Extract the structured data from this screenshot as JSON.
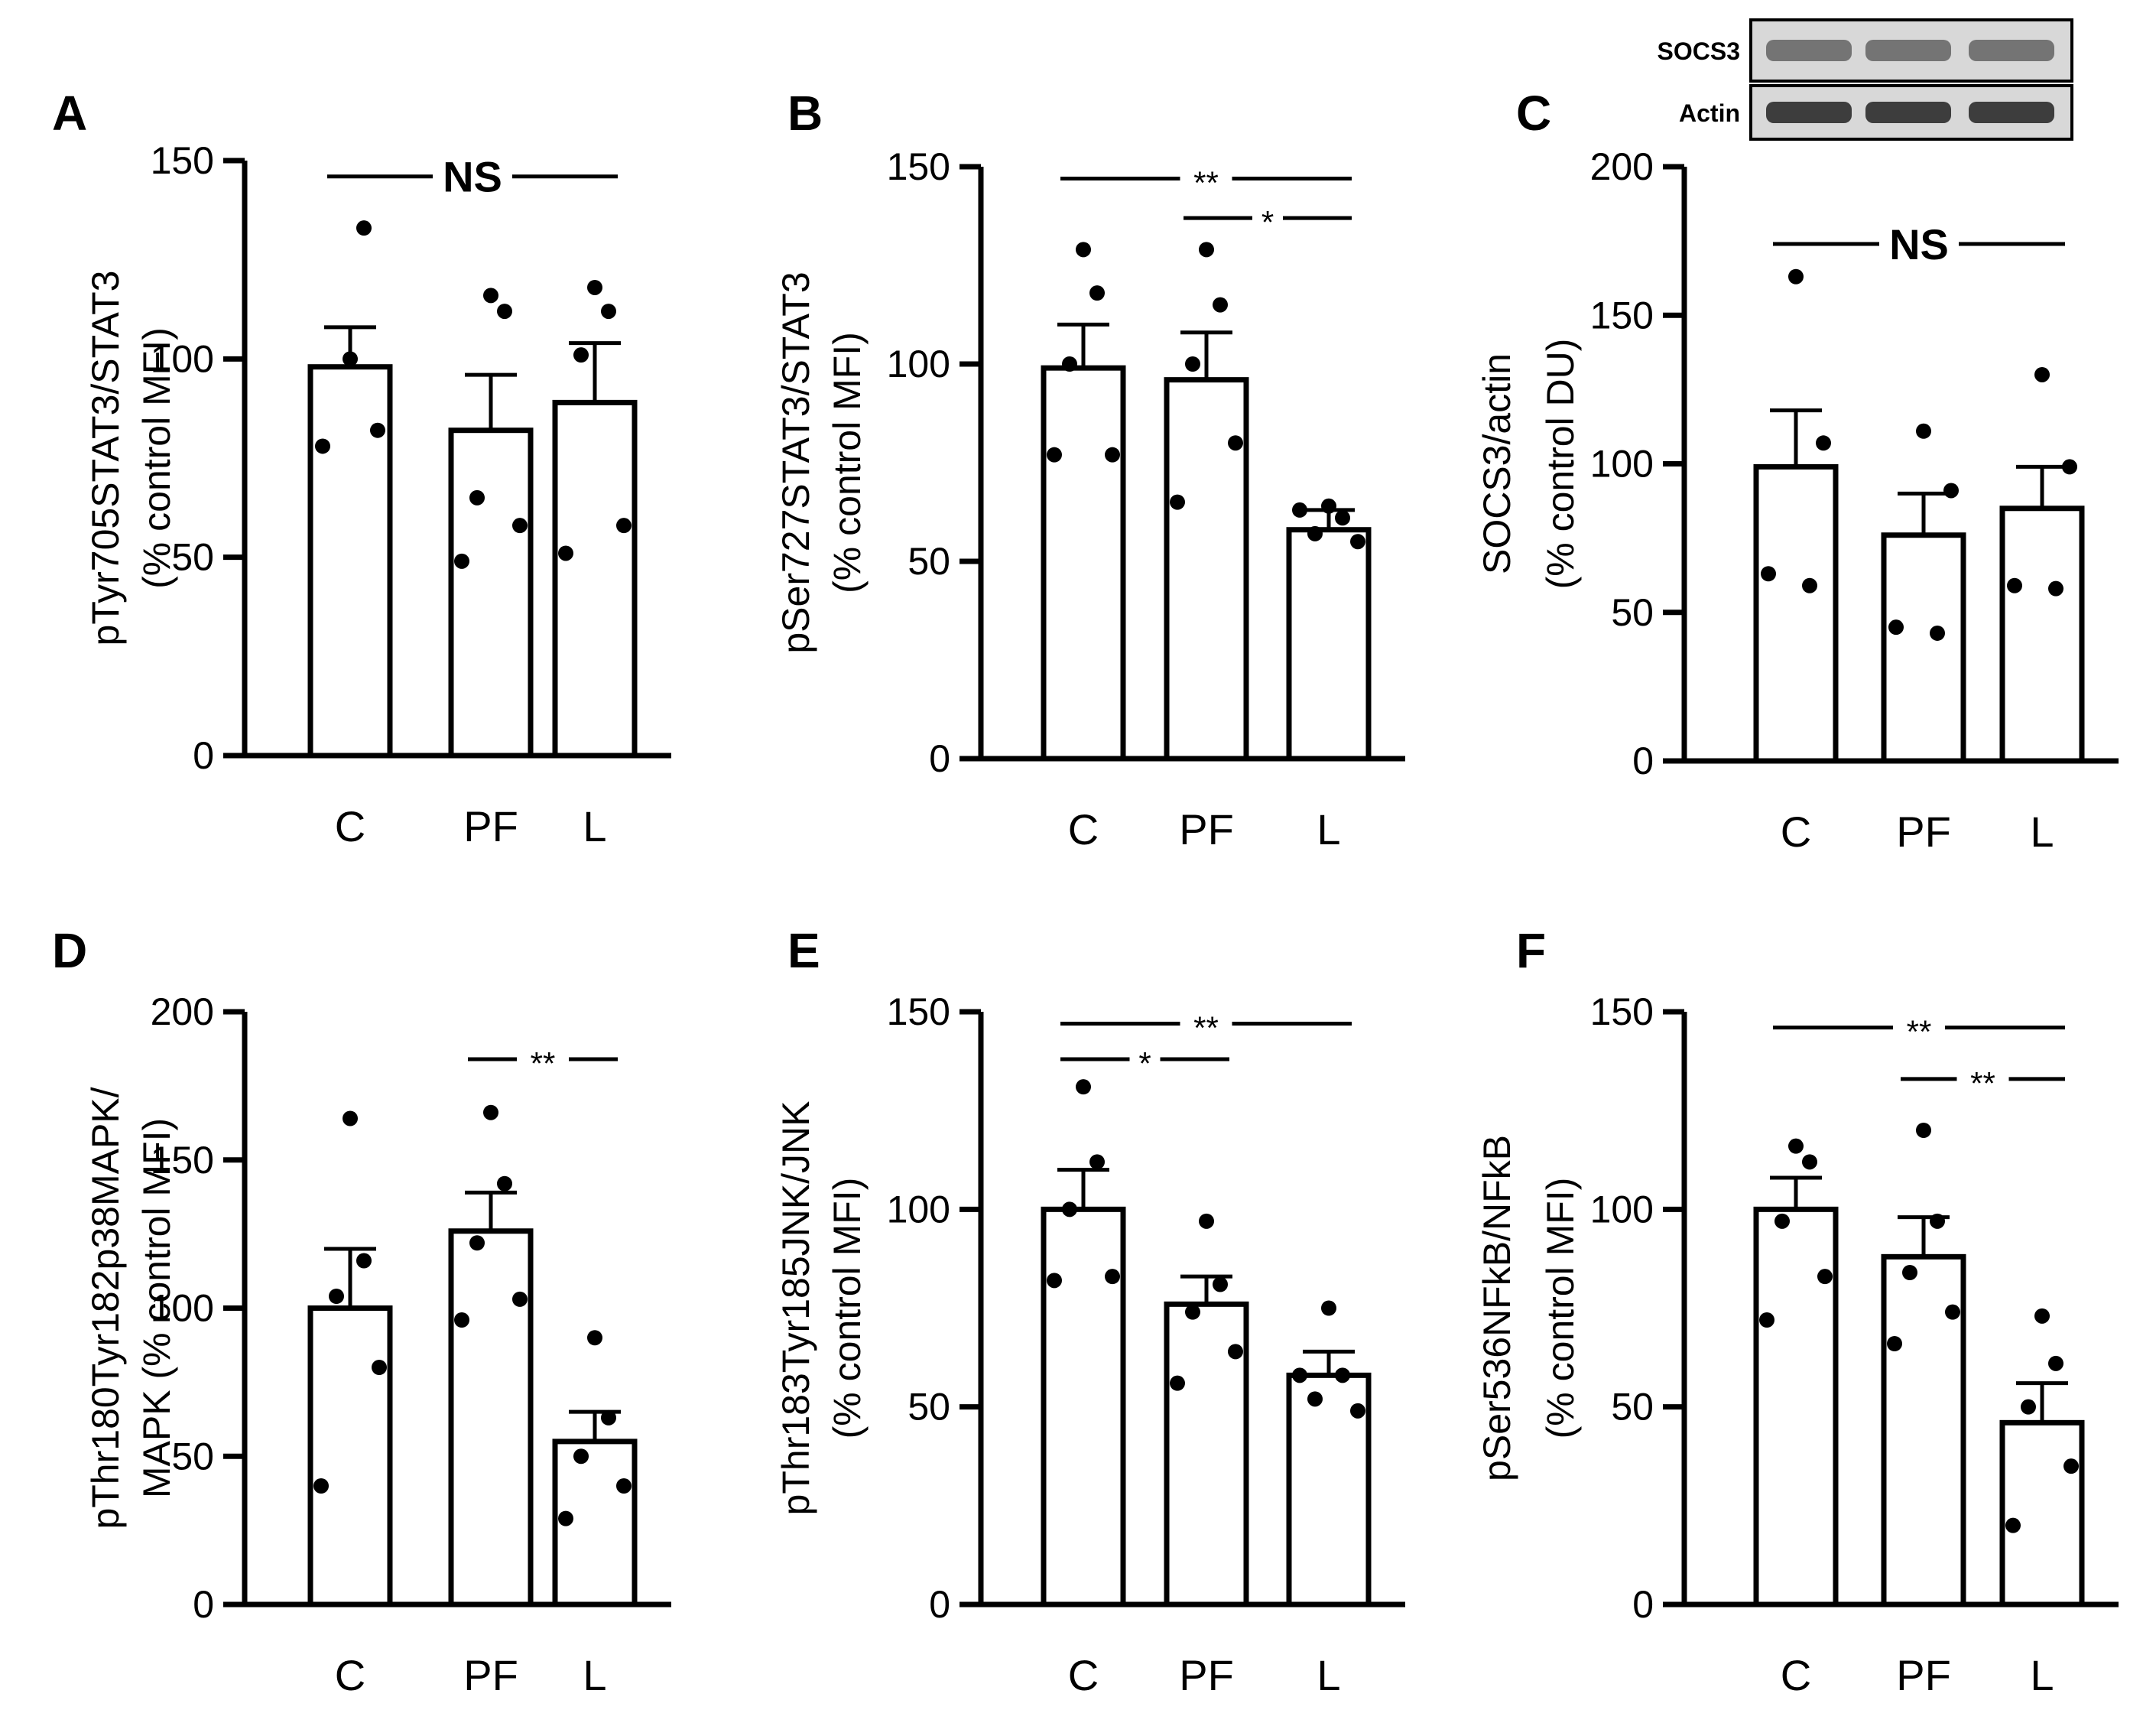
{
  "chart_data": [
    {
      "type": "bar",
      "panel_label": "A",
      "categories": [
        "C",
        "PF",
        "L"
      ],
      "values": [
        98,
        82,
        89
      ],
      "errors": [
        10,
        14,
        15
      ],
      "points": [
        [
          100,
          82,
          78,
          133
        ],
        [
          116,
          112,
          65,
          58,
          49
        ],
        [
          118,
          112,
          101,
          58,
          51
        ]
      ],
      "ylabel": [
        "pTyr705STAT3/STAT3",
        "(% control MFI)"
      ],
      "ylim": [
        0,
        150
      ],
      "yticks": [
        0,
        50,
        100,
        150
      ],
      "sig": [
        {
          "from": 0,
          "to": 2,
          "label": "NS",
          "y": 146
        }
      ]
    },
    {
      "type": "bar",
      "panel_label": "B",
      "categories": [
        "C",
        "PF",
        "L"
      ],
      "values": [
        99,
        96,
        58
      ],
      "errors": [
        11,
        12,
        5
      ],
      "points": [
        [
          129,
          118,
          100,
          77,
          77
        ],
        [
          129,
          115,
          100,
          80,
          65
        ],
        [
          64,
          61,
          57,
          55,
          63
        ]
      ],
      "ylabel": [
        "pSer727STAT3/STAT3",
        "(% control MFI)"
      ],
      "ylim": [
        0,
        150
      ],
      "yticks": [
        0,
        50,
        100,
        150
      ],
      "sig": [
        {
          "from": 0,
          "to": 2,
          "label": "**",
          "y": 147
        },
        {
          "from": 1,
          "to": 2,
          "label": "*",
          "y": 137
        }
      ]
    },
    {
      "type": "bar",
      "panel_label": "C",
      "categories": [
        "C",
        "PF",
        "L"
      ],
      "values": [
        99,
        76,
        85
      ],
      "errors": [
        19,
        14,
        14
      ],
      "points": [
        [
          163,
          107,
          63,
          59
        ],
        [
          111,
          91,
          45,
          43
        ],
        [
          130,
          99,
          59,
          58
        ]
      ],
      "ylabel": [
        "SOCS3/actin",
        "(% control DU)"
      ],
      "ylim": [
        0,
        200
      ],
      "yticks": [
        0,
        50,
        100,
        150,
        200
      ],
      "sig": [
        {
          "from": 0,
          "to": 2,
          "label": "NS",
          "y": 174
        }
      ],
      "blot": {
        "rows": [
          "SOCS3",
          "Actin"
        ]
      }
    },
    {
      "type": "bar",
      "panel_label": "D",
      "categories": [
        "C",
        "PF",
        "L"
      ],
      "values": [
        100,
        126,
        55
      ],
      "errors": [
        20,
        13,
        10
      ],
      "points": [
        [
          164,
          116,
          104,
          80,
          40
        ],
        [
          166,
          142,
          122,
          103,
          96
        ],
        [
          90,
          63,
          50,
          40,
          29
        ]
      ],
      "ylabel": [
        "pThr180Tyr182p38MAPK/",
        "MAPK (% control MFI)"
      ],
      "ylim": [
        0,
        200
      ],
      "yticks": [
        0,
        50,
        100,
        150,
        200
      ],
      "sig": [
        {
          "from": 1,
          "to": 2,
          "label": "**",
          "y": 184
        }
      ]
    },
    {
      "type": "bar",
      "panel_label": "E",
      "categories": [
        "C",
        "PF",
        "L"
      ],
      "values": [
        100,
        76,
        58
      ],
      "errors": [
        10,
        7,
        6
      ],
      "points": [
        [
          131,
          112,
          100,
          83,
          82
        ],
        [
          97,
          81,
          74,
          64,
          56
        ],
        [
          75,
          58,
          52,
          49,
          58
        ]
      ],
      "ylabel": [
        "pThr183Tyr185JNK/JNK",
        "(% control MFI)"
      ],
      "ylim": [
        0,
        150
      ],
      "yticks": [
        0,
        50,
        100,
        150
      ],
      "sig": [
        {
          "from": 0,
          "to": 2,
          "label": "**",
          "y": 147
        },
        {
          "from": 0,
          "to": 1,
          "label": "*",
          "y": 138
        }
      ]
    },
    {
      "type": "bar",
      "panel_label": "F",
      "categories": [
        "C",
        "PF",
        "L"
      ],
      "values": [
        100,
        88,
        46
      ],
      "errors": [
        8,
        10,
        10
      ],
      "points": [
        [
          116,
          112,
          97,
          83,
          72
        ],
        [
          120,
          97,
          84,
          74,
          66
        ],
        [
          73,
          61,
          50,
          35,
          20
        ]
      ],
      "ylabel": [
        "pSer536NFkB/NFkB",
        "(% control MFI)"
      ],
      "ylim": [
        0,
        150
      ],
      "yticks": [
        0,
        50,
        100,
        150
      ],
      "sig": [
        {
          "from": 0,
          "to": 2,
          "label": "**",
          "y": 146
        },
        {
          "from": 1,
          "to": 2,
          "label": "**",
          "y": 133
        }
      ]
    }
  ]
}
